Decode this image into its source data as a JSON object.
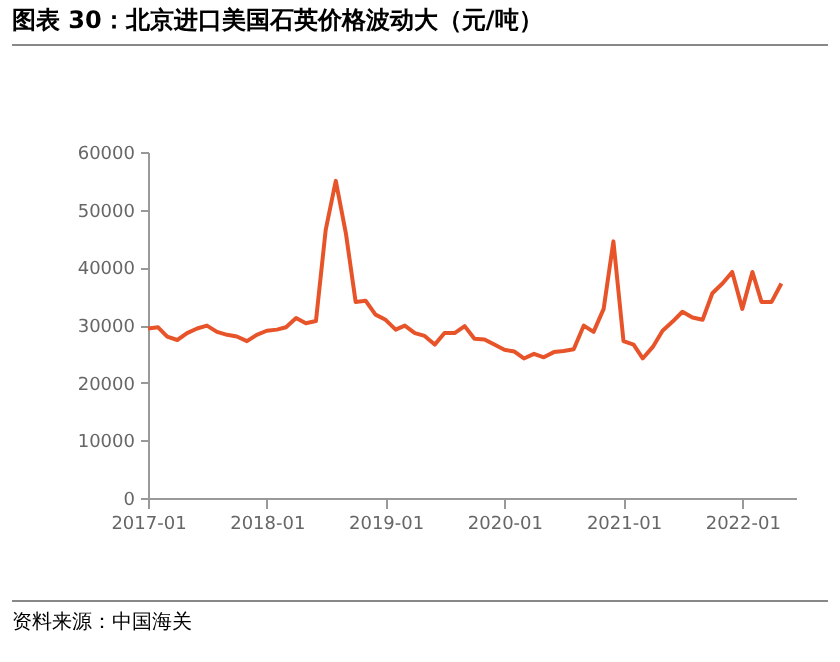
{
  "chart_data": {
    "type": "line",
    "title": "图表 30：北京进口美国石英价格波动大（元/吨）",
    "annotations": [
      "资料来源：中国海关"
    ],
    "x": [
      "2017-01",
      "2017-02",
      "2017-03",
      "2017-04",
      "2017-05",
      "2017-06",
      "2017-07",
      "2017-08",
      "2017-09",
      "2017-10",
      "2017-11",
      "2017-12",
      "2018-01",
      "2018-02",
      "2018-03",
      "2018-04",
      "2018-05",
      "2018-06",
      "2018-07",
      "2018-08",
      "2018-09",
      "2018-10",
      "2018-11",
      "2018-12",
      "2019-01",
      "2019-02",
      "2019-03",
      "2019-04",
      "2019-05",
      "2019-06",
      "2019-07",
      "2019-08",
      "2019-09",
      "2019-10",
      "2019-11",
      "2019-12",
      "2020-01",
      "2020-02",
      "2020-03",
      "2020-04",
      "2020-05",
      "2020-06",
      "2020-07",
      "2020-08",
      "2020-09",
      "2020-10",
      "2020-11",
      "2020-12",
      "2021-01",
      "2021-02",
      "2021-03",
      "2021-04",
      "2021-05",
      "2021-06",
      "2021-07",
      "2021-08",
      "2021-09",
      "2021-10",
      "2021-11",
      "2021-12",
      "2022-01",
      "2022-02",
      "2022-03",
      "2022-04",
      "2022-05"
    ],
    "series": [
      {
        "color": "#e8542a",
        "values": [
          29400,
          29600,
          28000,
          27400,
          28600,
          29400,
          29900,
          28800,
          28300,
          28000,
          27200,
          28300,
          29000,
          29200,
          29600,
          31200,
          30300,
          30700,
          46500,
          55000,
          45900,
          34000,
          34200,
          31800,
          30900,
          29200,
          29900,
          28600,
          28100,
          26600,
          28600,
          28600,
          29800,
          27600,
          27500,
          26600,
          25700,
          25400,
          24200,
          25000,
          24400,
          25300,
          25500,
          25800,
          29900,
          28800,
          32800,
          44500,
          27200,
          26600,
          24200,
          26200,
          29000,
          30600,
          32300,
          31300,
          30900,
          35500,
          37200,
          39200,
          32800,
          39200,
          34000,
          34000,
          37200
        ]
      }
    ],
    "xlim": [
      "2017-01",
      "2022-06-15"
    ],
    "xticks": [
      "2017-01",
      "2018-01",
      "2019-01",
      "2020-01",
      "2021-01",
      "2022-01"
    ],
    "ylim": [
      0,
      60000
    ],
    "yticks": [
      0,
      10000,
      20000,
      30000,
      40000,
      50000,
      60000
    ],
    "grid": false,
    "legend": false,
    "marker": "none",
    "line_style": "solid"
  }
}
